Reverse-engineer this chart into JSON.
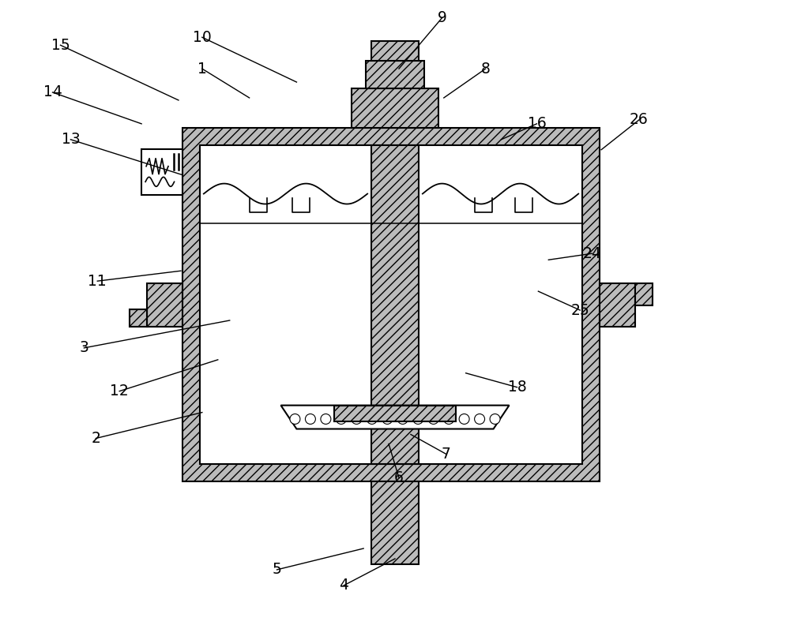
{
  "bg_color": "#ffffff",
  "fig_width": 10.0,
  "fig_height": 8.11,
  "lw": 1.5,
  "lw_thin": 1.1,
  "hatch": "///",
  "hatch_color": "#aaaaaa"
}
